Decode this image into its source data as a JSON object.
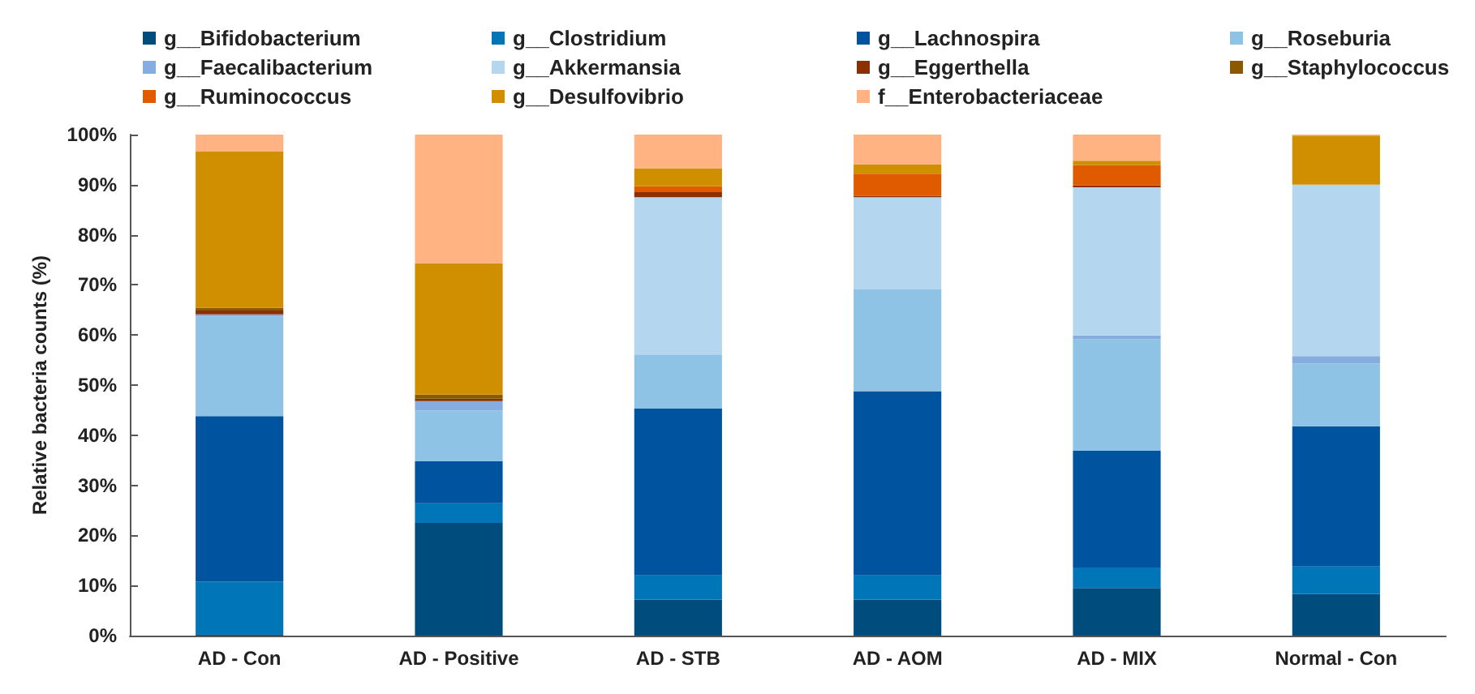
{
  "chart_data": {
    "type": "bar",
    "stacked": true,
    "ylabel": "Relative bacteria counts (%)",
    "categories": [
      "AD - Con",
      "AD - Positive",
      "AD - STB",
      "AD - AOM",
      "AD - MIX",
      "Normal - Con"
    ],
    "ylim": [
      0,
      100
    ],
    "yticks": [
      {
        "value": 0,
        "label": "0%"
      },
      {
        "value": 10,
        "label": "10%"
      },
      {
        "value": 20,
        "label": "20%"
      },
      {
        "value": 30,
        "label": "30%"
      },
      {
        "value": 40,
        "label": "40%"
      },
      {
        "value": 50,
        "label": "50%"
      },
      {
        "value": 60,
        "label": "60%"
      },
      {
        "value": 70,
        "label": "70%"
      },
      {
        "value": 80,
        "label": "80%"
      },
      {
        "value": 90,
        "label": "90%"
      },
      {
        "value": 100,
        "label": "100%"
      }
    ],
    "grid": false,
    "legend": "top",
    "series": [
      {
        "name": "g__Bifidobacterium",
        "color": "#004c7c",
        "values": [
          0.3,
          22.5,
          7.2,
          7.2,
          9.5,
          8.3
        ]
      },
      {
        "name": "g__Clostridium",
        "color": "#0075b8",
        "values": [
          10.5,
          3.9,
          4.8,
          4.8,
          4.1,
          5.5
        ]
      },
      {
        "name": "g__Lachnospira",
        "color": "#00539f",
        "values": [
          33,
          8.4,
          33.3,
          36.8,
          23.3,
          28
        ]
      },
      {
        "name": "g__Roseburia",
        "color": "#8ec3e6",
        "values": [
          19.9,
          10.1,
          10.8,
          20.3,
          22.3,
          12.5
        ]
      },
      {
        "name": "g__Faecalibacterium",
        "color": "#85ade0",
        "values": [
          0.4,
          1.9,
          0,
          0,
          0.7,
          1.5
        ]
      },
      {
        "name": "g__Akkermansia",
        "color": "#b4d7ef",
        "values": [
          0,
          0,
          31.4,
          18.4,
          29.6,
          34.2
        ]
      },
      {
        "name": "g__Eggerthella",
        "color": "#8b3000",
        "values": [
          0.8,
          0.5,
          1,
          0.3,
          0.4,
          0
        ]
      },
      {
        "name": "g__Staphylococcus",
        "color": "#8b5a00",
        "values": [
          0.5,
          0.8,
          0,
          0,
          0,
          0
        ]
      },
      {
        "name": "g__Ruminococcus",
        "color": "#e05a00",
        "values": [
          0,
          0,
          1.2,
          4.4,
          4,
          0
        ]
      },
      {
        "name": "g__Desulfovibrio",
        "color": "#cf8f00",
        "values": [
          31.2,
          26.2,
          3.6,
          1.9,
          0.9,
          9.8
        ]
      },
      {
        "name": "f__Enterobacteriaceae",
        "color": "#ffb282",
        "values": [
          3.4,
          25.7,
          6.7,
          5.9,
          5.2,
          0.2
        ]
      }
    ]
  }
}
